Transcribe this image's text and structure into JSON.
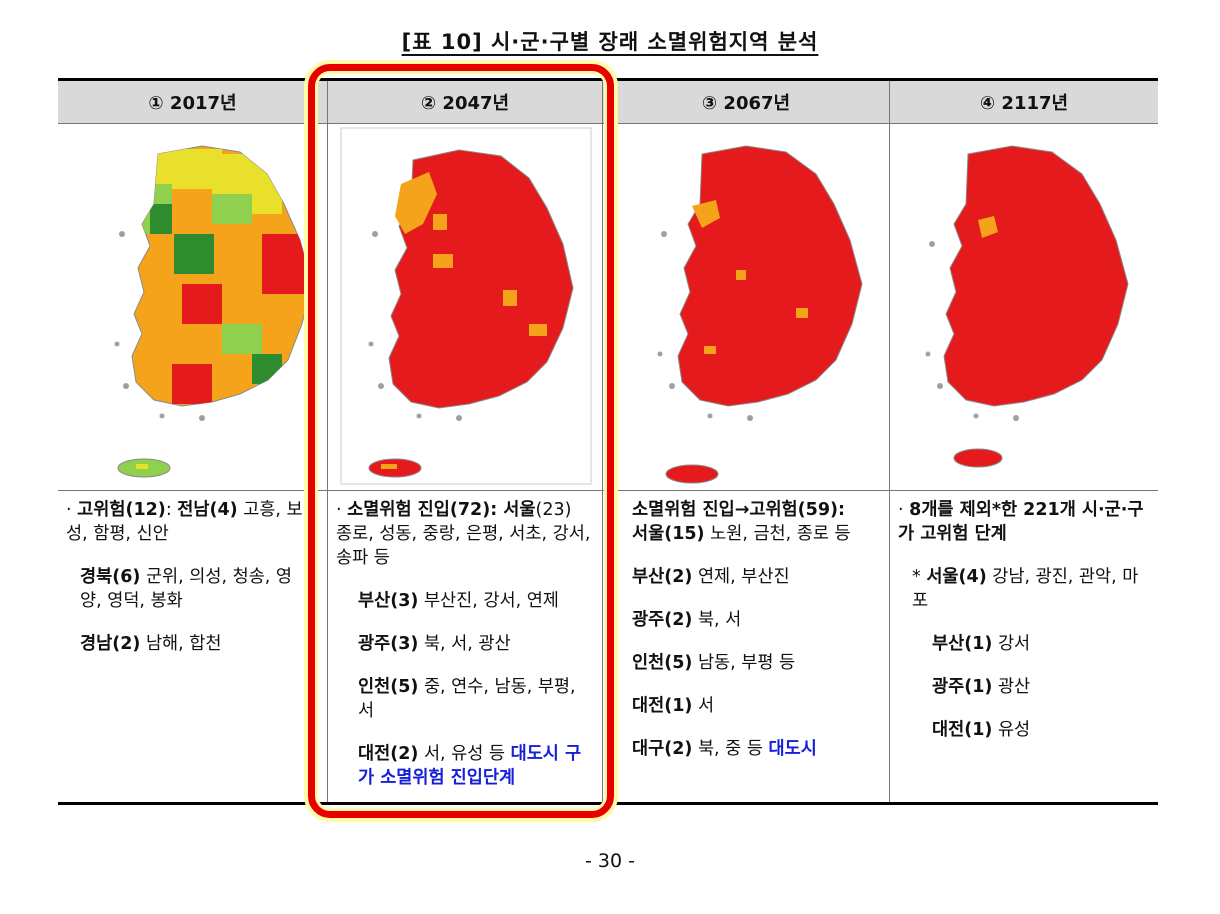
{
  "title": "[표 10] 시·군·구별 장래 소멸위험지역 분석",
  "columns": [
    {
      "label": "① 2017년"
    },
    {
      "label": "② 2047년"
    },
    {
      "label": "③ 2067년"
    },
    {
      "label": "④ 2117년"
    }
  ],
  "col1": {
    "p1_bullet": "·",
    "p1_bold": "고위험(12)",
    "p1_colon": ": ",
    "p1_bold2": "전남(4)",
    "p1_rest": " 고흥, 보성, 함평, 신안",
    "p2_bold": "경북(6)",
    "p2_rest": " 군위, 의성, 청송, 영양, 영덕, 봉화",
    "p3_bold": "경남(2)",
    "p3_rest": " 남해, 합천"
  },
  "col2": {
    "p1_bullet": "·",
    "p1_bold": "소멸위험 진입(72): 서울",
    "p1_rest": "(23) 종로, 성동, 중랑, 은평, 서초, 강서, 송파 등",
    "p2_bold": "부산(3)",
    "p2_rest": " 부산진, 강서, 연제",
    "p3_bold": "광주(3)",
    "p3_rest": " 북, 서, 광산",
    "p4_bold": "인천(5)",
    "p4_rest": " 중, 연수, 남동, 부평, 서",
    "p5_bold": "대전(2)",
    "p5_rest": " 서, 유성 등 ",
    "p5_blue": "대도시 구가 소멸위험 진입단계"
  },
  "col3": {
    "p1_bold": "소멸위험 진입→고위험(59):",
    "p1_bold2": "서울(15)",
    "p1_rest": " 노원, 금천, 종로 등",
    "p2_bold": "부산(2)",
    "p2_rest": " 연제, 부산진",
    "p3_bold": "광주(2)",
    "p3_rest": " 북, 서",
    "p4_bold": "인천(5)",
    "p4_rest": " 남동, 부평 등",
    "p5_bold": "대전(1)",
    "p5_rest": " 서",
    "p6_bold": "대구(2)",
    "p6_rest": " 북, 중 등 ",
    "p6_blue": "대도시"
  },
  "col4": {
    "p1_bullet": "·",
    "p1_text": "8개를 제외*한 221개 시·군·구가 고위험 단계",
    "p2_star": "*",
    "p2_bold": "서울(4)",
    "p2_rest": " 강남, 광진, 관악, 마포",
    "p3_bold": "부산(1)",
    "p3_rest": " 강서",
    "p4_bold": "광주(1)",
    "p4_rest": " 광산",
    "p5_bold": "대전(1)",
    "p5_rest": " 유성"
  },
  "page_number": "- 30 -",
  "colors": {
    "high_risk_red": "#e41a1c",
    "entry_orange": "#f4a31a",
    "caution_yellow": "#e8e02a",
    "normal_lightgreen": "#8fd14f",
    "low_green": "#2e8b2e",
    "highlight_border": "#e60000",
    "highlight_glow": "#fff9a8",
    "emphasis_blue": "#1520d8"
  }
}
